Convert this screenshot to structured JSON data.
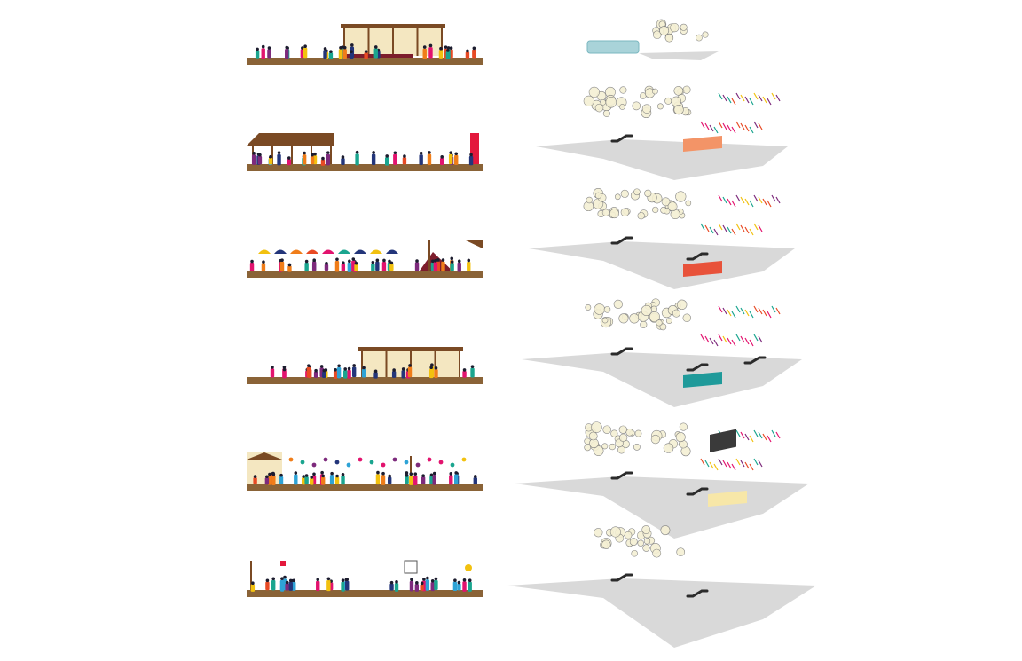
{
  "diagram": {
    "colors": {
      "ground": "#8a6337",
      "roof": "#7a4a24",
      "wall": "#f4e7c1",
      "carpet": "#7d1d2c",
      "floor_plan": "#d9d9d9",
      "lantern_fill": "#f5f0d4",
      "lantern_stroke": "#7c7c7c",
      "stair": "#2b2b2b",
      "figure_palette": [
        "#e2136e",
        "#1aa58f",
        "#f2c10f",
        "#23357a",
        "#e84a24",
        "#7d2a7c",
        "#2ea3d6",
        "#f07d19"
      ],
      "flag_palette": [
        "#e2136e",
        "#1aa58f",
        "#f2c10f",
        "#e84a24",
        "#7d2a7c"
      ]
    },
    "levels": [
      {
        "id": "level-1",
        "scene": "pavilion-right",
        "feature_icon": "pool-icon",
        "feature_color": "#a9d3d9",
        "floor_plan": false,
        "lanterns": "small",
        "flags": false
      },
      {
        "id": "level-2",
        "scene": "shed-left",
        "feature_icon": "panel-icon",
        "feature_color": "#f39467",
        "floor_plan": true,
        "lanterns": "large",
        "flags": true
      },
      {
        "id": "level-3",
        "scene": "umbrellas",
        "feature_icon": "panel-icon",
        "feature_color": "#e8523a",
        "floor_plan": true,
        "lanterns": "large",
        "flags": true
      },
      {
        "id": "level-4",
        "scene": "pavilion-right",
        "feature_icon": "panel-icon",
        "feature_color": "#1f9a9a",
        "floor_plan": true,
        "lanterns": "large",
        "flags": true
      },
      {
        "id": "level-5",
        "scene": "balloons",
        "feature_icon": "panel-icon",
        "feature_color": "#f7e7a8",
        "floor_plan": true,
        "lanterns": "large",
        "flags": true
      },
      {
        "id": "level-6",
        "scene": "banners",
        "feature_icon": "screen-icon",
        "feature_color": "#3a3a3a",
        "floor_plan": true,
        "lanterns": "medium",
        "flags": false
      }
    ]
  }
}
